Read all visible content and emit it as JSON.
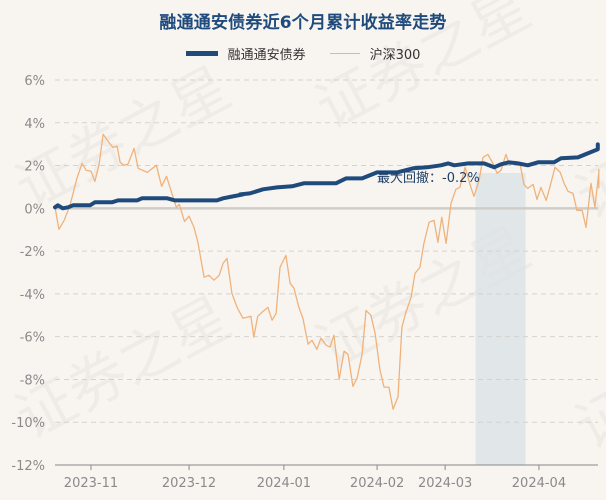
{
  "title": "融通通安债券近6个月累计收益率走势",
  "legend": [
    {
      "name": "融通通安债券",
      "color": "#1f4a7c"
    },
    {
      "name": "沪深300",
      "color": "#f0b27a"
    }
  ],
  "annotation": {
    "label": "最大回撤：-0.2%",
    "shade_start_day": 128.6,
    "shade_end_day": 143.9
  },
  "watermark": "证券之星",
  "colors": {
    "background": "#f8f5f1",
    "fund": "#1f4a7c",
    "index": "#f0b27a",
    "shade": "#dde3e8",
    "grid": "#d5d2cd",
    "axis": "#888888",
    "tick_text": "#8a8a8a"
  },
  "chart_data": {
    "type": "line",
    "title": "融通通安债券近6个月累计收益率走势",
    "xlabel": "",
    "ylabel": "",
    "ylim": [
      -12,
      6
    ],
    "yticks": [
      6,
      4,
      2,
      0,
      -2,
      -4,
      -6,
      -8,
      -10,
      -12
    ],
    "ytick_labels": [
      "6%",
      "4%",
      "2%",
      "0%",
      "-2%",
      "-4%",
      "-6%",
      "-8%",
      "-10%",
      "-12%"
    ],
    "xlim_days": [
      0,
      166
    ],
    "xticks": [
      {
        "label": "2023-11",
        "day": 11
      },
      {
        "label": "2023-12",
        "day": 41
      },
      {
        "label": "2024-01",
        "day": 70
      },
      {
        "label": "2024-02",
        "day": 98.5
      },
      {
        "label": "2024-03",
        "day": 119.3
      },
      {
        "label": "2024-04",
        "day": 148
      }
    ],
    "grid": true,
    "legend_position": "top",
    "series": [
      {
        "name": "融通通安债券",
        "points": [
          [
            0,
            0.05
          ],
          [
            0.9,
            0.14
          ],
          [
            2.4,
            0.0
          ],
          [
            4,
            0.05
          ],
          [
            5.5,
            0.14
          ],
          [
            10.7,
            0.14
          ],
          [
            12.2,
            0.28
          ],
          [
            17.4,
            0.28
          ],
          [
            19.3,
            0.37
          ],
          [
            25.1,
            0.37
          ],
          [
            26.6,
            0.47
          ],
          [
            34.3,
            0.47
          ],
          [
            36.7,
            0.37
          ],
          [
            49.5,
            0.37
          ],
          [
            51.4,
            0.47
          ],
          [
            54.4,
            0.56
          ],
          [
            57.5,
            0.65
          ],
          [
            56.6,
            0.65
          ],
          [
            59.6,
            0.7
          ],
          [
            63.6,
            0.89
          ],
          [
            67.9,
            0.98
          ],
          [
            72.5,
            1.03
          ],
          [
            76.1,
            1.17
          ],
          [
            85.9,
            1.17
          ],
          [
            89,
            1.4
          ],
          [
            93.9,
            1.4
          ],
          [
            98.5,
            1.68
          ],
          [
            104.6,
            1.68
          ],
          [
            109.5,
            1.87
          ],
          [
            113.8,
            1.92
          ],
          [
            118,
            2.01
          ],
          [
            120.2,
            2.1
          ],
          [
            122.1,
            2.01
          ],
          [
            126.4,
            2.1
          ],
          [
            131.2,
            2.1
          ],
          [
            134.3,
            1.92
          ],
          [
            136.4,
            2.06
          ],
          [
            138.8,
            2.15
          ],
          [
            141.6,
            2.1
          ],
          [
            144.6,
            2.01
          ],
          [
            147.7,
            2.15
          ],
          [
            152.6,
            2.15
          ],
          [
            154.7,
            2.34
          ],
          [
            159.9,
            2.38
          ],
          [
            162.9,
            2.57
          ],
          [
            166,
            2.76
          ],
          [
            166,
            2.99
          ]
        ]
      },
      {
        "name": "沪深300",
        "points": [
          [
            0,
            0.05
          ],
          [
            1.2,
            -0.98
          ],
          [
            2.8,
            -0.56
          ],
          [
            4.6,
            0.14
          ],
          [
            6.7,
            1.4
          ],
          [
            8.3,
            2.1
          ],
          [
            9.5,
            1.78
          ],
          [
            11,
            1.73
          ],
          [
            12.2,
            1.26
          ],
          [
            13.5,
            2.06
          ],
          [
            14.7,
            3.46
          ],
          [
            16.5,
            3.08
          ],
          [
            17.7,
            2.85
          ],
          [
            19,
            2.9
          ],
          [
            19.9,
            2.15
          ],
          [
            21.1,
            2.01
          ],
          [
            22.3,
            2.06
          ],
          [
            24.2,
            2.8
          ],
          [
            25.4,
            1.87
          ],
          [
            28.2,
            1.68
          ],
          [
            31.0,
            2.01
          ],
          [
            32.6,
            1.03
          ],
          [
            34.1,
            1.5
          ],
          [
            37.1,
            0.05
          ],
          [
            38,
            0.19
          ],
          [
            39.6,
            -0.61
          ],
          [
            41.0,
            -0.37
          ],
          [
            42.5,
            -0.89
          ],
          [
            43.7,
            -1.59
          ],
          [
            45.6,
            -3.22
          ],
          [
            47.1,
            -3.13
          ],
          [
            48.6,
            -3.36
          ],
          [
            50.2,
            -3.13
          ],
          [
            51.4,
            -2.57
          ],
          [
            52.6,
            -2.34
          ],
          [
            54.1,
            -3.97
          ],
          [
            55.7,
            -4.63
          ],
          [
            57.5,
            -5.14
          ],
          [
            59.9,
            -5.05
          ],
          [
            60.8,
            -6.02
          ],
          [
            62.0,
            -5.05
          ],
          [
            63.3,
            -4.86
          ],
          [
            65.1,
            -4.63
          ],
          [
            66.4,
            -5.23
          ],
          [
            67.6,
            -4.91
          ],
          [
            68.8,
            -2.76
          ],
          [
            70.6,
            -2.2
          ],
          [
            71.9,
            -3.5
          ],
          [
            73.1,
            -3.74
          ],
          [
            74.6,
            -4.63
          ],
          [
            75.8,
            -5.14
          ],
          [
            77.4,
            -6.35
          ],
          [
            78.6,
            -6.17
          ],
          [
            80.1,
            -6.59
          ],
          [
            81.3,
            -6.07
          ],
          [
            82.9,
            -6.4
          ],
          [
            84.1,
            -6.49
          ],
          [
            85.3,
            -5.93
          ],
          [
            86.9,
            -7.99
          ],
          [
            88.4,
            -6.68
          ],
          [
            89.6,
            -6.82
          ],
          [
            91.1,
            -8.32
          ],
          [
            92.4,
            -7.94
          ],
          [
            93.9,
            -6.82
          ],
          [
            95.1,
            -4.77
          ],
          [
            96.6,
            -5.0
          ],
          [
            97.9,
            -5.84
          ],
          [
            99.4,
            -7.57
          ],
          [
            100.6,
            -8.36
          ],
          [
            102.1,
            -8.36
          ],
          [
            103.4,
            -9.39
          ],
          [
            104.9,
            -8.81
          ],
          [
            106.1,
            -5.56
          ],
          [
            107.3,
            -4.86
          ],
          [
            108.9,
            -4.16
          ],
          [
            110.1,
            -3.04
          ],
          [
            111.6,
            -2.76
          ],
          [
            112.8,
            -1.64
          ],
          [
            114.4,
            -0.65
          ],
          [
            115.9,
            -0.56
          ],
          [
            117.1,
            -1.59
          ],
          [
            118.3,
            -0.42
          ],
          [
            119.6,
            -1.64
          ],
          [
            121.1,
            0.23
          ],
          [
            122.6,
            0.89
          ],
          [
            123.8,
            0.98
          ],
          [
            125.4,
            1.92
          ],
          [
            126.9,
            1.12
          ],
          [
            128.1,
            0.56
          ],
          [
            129.7,
            1.31
          ],
          [
            130.9,
            2.38
          ],
          [
            132.4,
            2.52
          ],
          [
            133.9,
            2.1
          ],
          [
            135.2,
            1.64
          ],
          [
            136.4,
            1.78
          ],
          [
            137.9,
            2.52
          ],
          [
            139.1,
            2.01
          ],
          [
            140.7,
            2.2
          ],
          [
            142.2,
            2.1
          ],
          [
            143.4,
            1.12
          ],
          [
            144.6,
            0.93
          ],
          [
            146.2,
            1.12
          ],
          [
            147.4,
            0.42
          ],
          [
            148.6,
            0.98
          ],
          [
            150.2,
            0.37
          ],
          [
            151.4,
            1.03
          ],
          [
            152.9,
            1.92
          ],
          [
            154.5,
            1.68
          ],
          [
            155.7,
            1.17
          ],
          [
            156.9,
            0.79
          ],
          [
            158.4,
            0.7
          ],
          [
            159.6,
            -0.09
          ],
          [
            161.2,
            -0.09
          ],
          [
            162.4,
            -0.89
          ],
          [
            163.9,
            1.17
          ],
          [
            165.1,
            0.05
          ],
          [
            166.4,
            1.68
          ],
          [
            167.6,
            1.82
          ],
          [
            168.8,
            0.93
          ]
        ]
      }
    ],
    "annotations": [
      {
        "text": "最大回撤：-0.2%",
        "type": "shaded_region",
        "x_start": "2024-02-28",
        "x_end": "2024-03-15"
      }
    ]
  }
}
